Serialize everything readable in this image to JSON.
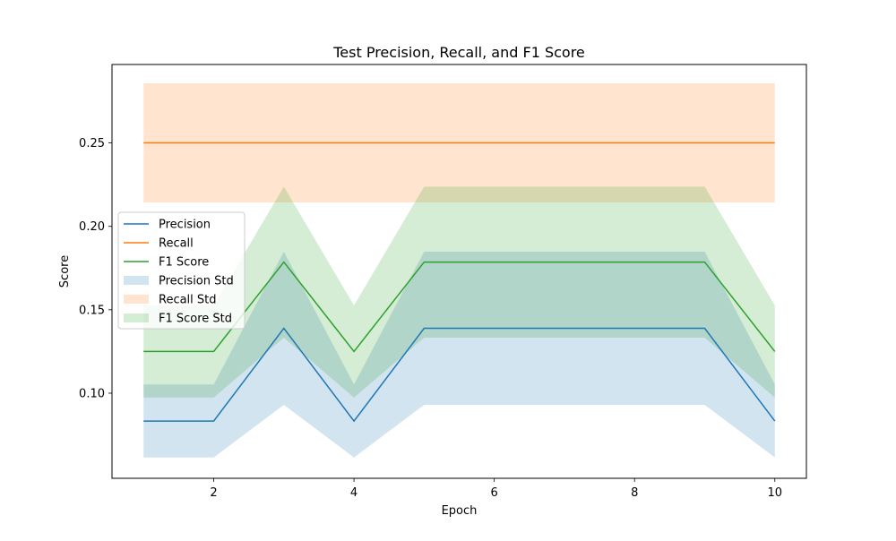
{
  "chart_data": {
    "type": "line",
    "title": "Test Precision, Recall, and F1 Score",
    "xlabel": "Epoch",
    "ylabel": "Score",
    "x": [
      1,
      2,
      3,
      4,
      5,
      6,
      7,
      8,
      9,
      10
    ],
    "xlim": [
      0.55,
      10.45
    ],
    "ylim": [
      0.049,
      0.297
    ],
    "xticks": [
      2,
      4,
      6,
      8,
      10
    ],
    "yticks": [
      0.1,
      0.15,
      0.2,
      0.25
    ],
    "xtick_labels": [
      "2",
      "4",
      "6",
      "8",
      "10"
    ],
    "ytick_labels": [
      "0.10",
      "0.15",
      "0.20",
      "0.25"
    ],
    "grid": false,
    "legend_position": "left",
    "series": [
      {
        "name": "Precision",
        "color": "#1f77b4",
        "values": [
          0.0833,
          0.0833,
          0.1389,
          0.0833,
          0.1389,
          0.1389,
          0.1389,
          0.1389,
          0.1389,
          0.0833
        ],
        "std_name": "Precision Std",
        "lower": [
          0.0615,
          0.0615,
          0.093,
          0.0615,
          0.093,
          0.093,
          0.093,
          0.093,
          0.093,
          0.0615
        ],
        "upper": [
          0.1052,
          0.1052,
          0.1848,
          0.1052,
          0.1848,
          0.1848,
          0.1848,
          0.1848,
          0.1848,
          0.1052
        ]
      },
      {
        "name": "Recall",
        "color": "#ff7f0e",
        "values": [
          0.25,
          0.25,
          0.25,
          0.25,
          0.25,
          0.25,
          0.25,
          0.25,
          0.25,
          0.25
        ],
        "std_name": "Recall Std",
        "lower": [
          0.2143,
          0.2143,
          0.2143,
          0.2143,
          0.2143,
          0.2143,
          0.2143,
          0.2143,
          0.2143,
          0.2143
        ],
        "upper": [
          0.2857,
          0.2857,
          0.2857,
          0.2857,
          0.2857,
          0.2857,
          0.2857,
          0.2857,
          0.2857,
          0.2857
        ]
      },
      {
        "name": "F1 Score",
        "color": "#2ca02c",
        "values": [
          0.125,
          0.125,
          0.1786,
          0.125,
          0.1786,
          0.1786,
          0.1786,
          0.1786,
          0.1786,
          0.125
        ],
        "std_name": "F1 Score Std",
        "lower": [
          0.0974,
          0.0974,
          0.1333,
          0.0974,
          0.1333,
          0.1333,
          0.1333,
          0.1333,
          0.1333,
          0.0974
        ],
        "upper": [
          0.1526,
          0.1526,
          0.2238,
          0.1526,
          0.2238,
          0.2238,
          0.2238,
          0.2238,
          0.2238,
          0.1526
        ]
      }
    ]
  }
}
